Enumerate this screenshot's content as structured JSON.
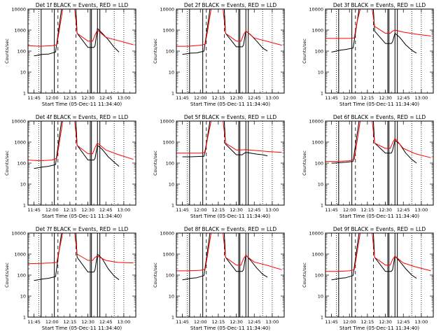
{
  "figure": {
    "start_time_label": "Start Time (05-Dec-11 11:34:40)",
    "ylabel": "Counts/sec",
    "tick_labels_y": [
      "10000",
      "1000",
      "100",
      "10",
      "1"
    ],
    "tick_labels_x": [
      "11:45",
      "12:00",
      "12:15",
      "12:30",
      "12:45",
      "13:00"
    ]
  },
  "colors": {
    "events": "#000000",
    "lld": "#ff0000"
  },
  "chart_data": [
    {
      "type": "line",
      "title": "Det 1f BLACK = Events, RED = LLD",
      "xlabel": "Start Time (05-Dec-11 11:34:40)",
      "ylabel": "Counts/sec",
      "x_axis": "time of day",
      "x_range": [
        "11:40",
        "13:10"
      ],
      "yscale": "log",
      "ylim": [
        1,
        10000
      ],
      "series": [
        {
          "name": "Events",
          "color": "#000000",
          "x": [
            "11:45",
            "11:47",
            "11:52",
            "11:57",
            "12:03",
            "12:05",
            "12:08",
            "12:09",
            "12:20",
            "12:21",
            "12:30",
            "12:35",
            "12:36",
            "12:38",
            "12:42",
            "12:47",
            "12:52",
            "12:56"
          ],
          "y": [
            60,
            62,
            70,
            72,
            90,
            600,
            10000,
            10000,
            10000,
            700,
            150,
            150,
            180,
            1200,
            700,
            350,
            150,
            90
          ]
        },
        {
          "name": "LLD",
          "color": "#ff0000",
          "x": [
            "11:40",
            "11:50",
            "12:00",
            "12:04",
            "12:06",
            "12:09",
            "12:19",
            "12:21",
            "12:30",
            "12:34",
            "12:36",
            "12:38",
            "12:45",
            "12:55",
            "13:08"
          ],
          "y": [
            180,
            170,
            180,
            200,
            900,
            10000,
            10000,
            700,
            300,
            300,
            600,
            1000,
            450,
            320,
            200
          ]
        }
      ]
    },
    {
      "type": "line",
      "title": "Det 2f BLACK = Events, RED = LLD",
      "xlabel": "Start Time (05-Dec-11 11:34:40)",
      "ylabel": "Counts/sec",
      "x_axis": "time of day",
      "x_range": [
        "11:40",
        "13:10"
      ],
      "yscale": "log",
      "ylim": [
        1,
        10000
      ],
      "series": [
        {
          "name": "Events",
          "color": "#000000",
          "x": [
            "11:45",
            "11:47",
            "11:52",
            "11:57",
            "12:03",
            "12:05",
            "12:08",
            "12:09",
            "12:20",
            "12:21",
            "12:30",
            "12:35",
            "12:36",
            "12:38",
            "12:42",
            "12:47",
            "12:52",
            "12:56"
          ],
          "y": [
            70,
            72,
            80,
            82,
            100,
            600,
            10000,
            10000,
            10000,
            700,
            160,
            160,
            190,
            900,
            600,
            300,
            140,
            100
          ]
        },
        {
          "name": "LLD",
          "color": "#ff0000",
          "x": [
            "11:40",
            "11:50",
            "12:00",
            "12:04",
            "12:06",
            "12:09",
            "12:19",
            "12:21",
            "12:30",
            "12:34",
            "12:36",
            "12:38",
            "12:45",
            "12:55",
            "13:08"
          ],
          "y": [
            170,
            170,
            190,
            210,
            900,
            10000,
            10000,
            700,
            300,
            300,
            600,
            900,
            420,
            300,
            190
          ]
        }
      ]
    },
    {
      "type": "line",
      "title": "Det 3f BLACK = Events, RED = LLD",
      "xlabel": "Start Time (05-Dec-11 11:34:40)",
      "ylabel": "Counts/sec",
      "x_axis": "time of day",
      "x_range": [
        "11:40",
        "13:10"
      ],
      "yscale": "log",
      "ylim": [
        1,
        10000
      ],
      "series": [
        {
          "name": "Events",
          "color": "#000000",
          "x": [
            "11:45",
            "11:47",
            "11:52",
            "11:57",
            "12:03",
            "12:05",
            "12:08",
            "12:09",
            "12:20",
            "12:21",
            "12:30",
            "12:35",
            "12:36",
            "12:38",
            "12:42",
            "12:47",
            "12:52",
            "12:56"
          ],
          "y": [
            90,
            95,
            110,
            120,
            140,
            700,
            10000,
            10000,
            10000,
            900,
            230,
            230,
            280,
            700,
            450,
            200,
            110,
            80
          ]
        },
        {
          "name": "LLD",
          "color": "#ff0000",
          "x": [
            "11:40",
            "11:50",
            "12:00",
            "12:04",
            "12:06",
            "12:09",
            "12:19",
            "12:21",
            "12:30",
            "12:34",
            "12:36",
            "12:38",
            "12:45",
            "12:55",
            "13:08"
          ],
          "y": [
            400,
            400,
            400,
            420,
            2000,
            10000,
            10000,
            1500,
            700,
            700,
            900,
            1000,
            800,
            650,
            520
          ]
        }
      ]
    },
    {
      "type": "line",
      "title": "Det 4f BLACK = Events, RED = LLD",
      "xlabel": "Start Time (05-Dec-11 11:34:40)",
      "ylabel": "Counts/sec",
      "x_axis": "time of day",
      "x_range": [
        "11:40",
        "13:10"
      ],
      "yscale": "log",
      "ylim": [
        1,
        10000
      ],
      "series": [
        {
          "name": "Events",
          "color": "#000000",
          "x": [
            "11:45",
            "11:47",
            "11:52",
            "11:57",
            "12:03",
            "12:05",
            "12:08",
            "12:09",
            "12:20",
            "12:21",
            "12:30",
            "12:35",
            "12:36",
            "12:38",
            "12:42",
            "12:47",
            "12:52",
            "12:56"
          ],
          "y": [
            55,
            58,
            65,
            70,
            85,
            600,
            10000,
            10000,
            10000,
            700,
            140,
            140,
            170,
            700,
            450,
            200,
            110,
            70
          ]
        },
        {
          "name": "LLD",
          "color": "#ff0000",
          "x": [
            "11:40",
            "11:50",
            "12:00",
            "12:04",
            "12:06",
            "12:09",
            "12:19",
            "12:21",
            "12:30",
            "12:34",
            "12:36",
            "12:38",
            "12:45",
            "12:55",
            "13:08"
          ],
          "y": [
            140,
            130,
            140,
            170,
            800,
            10000,
            10000,
            700,
            280,
            280,
            550,
            900,
            420,
            260,
            150
          ]
        }
      ]
    },
    {
      "type": "line",
      "title": "Det 5f BLACK = Events, RED = LLD",
      "xlabel": "Start Time (05-Dec-11 11:34:40)",
      "ylabel": "Counts/sec",
      "x_axis": "time of day",
      "x_range": [
        "11:40",
        "13:10"
      ],
      "yscale": "log",
      "ylim": [
        1,
        10000
      ],
      "series": [
        {
          "name": "Events",
          "color": "#000000",
          "x": [
            "11:45",
            "11:47",
            "11:52",
            "11:57",
            "12:03",
            "12:05",
            "12:08",
            "12:09",
            "12:20",
            "12:21",
            "12:30",
            "12:35",
            "12:36",
            "12:38",
            "12:42",
            "12:47",
            "12:52",
            "12:56"
          ],
          "y": [
            200,
            200,
            200,
            205,
            210,
            800,
            10000,
            10000,
            10000,
            800,
            250,
            250,
            280,
            320,
            300,
            270,
            250,
            220
          ]
        },
        {
          "name": "LLD",
          "color": "#ff0000",
          "x": [
            "11:40",
            "11:50",
            "12:00",
            "12:04",
            "12:06",
            "12:09",
            "12:19",
            "12:21",
            "12:30",
            "12:34",
            "12:36",
            "12:38",
            "12:45",
            "12:55",
            "13:08"
          ],
          "y": [
            300,
            300,
            300,
            320,
            1500,
            10000,
            10000,
            900,
            420,
            420,
            430,
            440,
            400,
            360,
            320
          ]
        }
      ]
    },
    {
      "type": "line",
      "title": "Det 6f BLACK = Events, RED = LLD",
      "xlabel": "Start Time (05-Dec-11 11:34:40)",
      "ylabel": "Counts/sec",
      "x_axis": "time of day",
      "x_range": [
        "11:40",
        "13:10"
      ],
      "yscale": "log",
      "ylim": [
        1,
        10000
      ],
      "series": [
        {
          "name": "Events",
          "color": "#000000",
          "x": [
            "11:45",
            "11:47",
            "11:52",
            "11:57",
            "12:03",
            "12:05",
            "12:08",
            "12:09",
            "12:20",
            "12:21",
            "12:30",
            "12:35",
            "12:36",
            "12:38",
            "12:42",
            "12:47",
            "12:52",
            "12:56"
          ],
          "y": [
            100,
            100,
            105,
            110,
            120,
            700,
            10000,
            10000,
            10000,
            900,
            300,
            300,
            400,
            1200,
            800,
            300,
            150,
            100
          ]
        },
        {
          "name": "LLD",
          "color": "#ff0000",
          "x": [
            "11:40",
            "11:50",
            "12:00",
            "12:04",
            "12:06",
            "12:09",
            "12:19",
            "12:21",
            "12:30",
            "12:34",
            "12:36",
            "12:38",
            "12:45",
            "12:55",
            "13:08"
          ],
          "y": [
            120,
            120,
            130,
            150,
            800,
            10000,
            10000,
            900,
            500,
            500,
            900,
            1500,
            500,
            280,
            180
          ]
        }
      ]
    },
    {
      "type": "line",
      "title": "Det 7f BLACK = Events, RED = LLD",
      "xlabel": "Start Time (05-Dec-11 11:34:40)",
      "ylabel": "Counts/sec",
      "x_axis": "time of day",
      "x_range": [
        "11:40",
        "13:10"
      ],
      "yscale": "log",
      "ylim": [
        1,
        10000
      ],
      "series": [
        {
          "name": "Events",
          "color": "#000000",
          "x": [
            "11:45",
            "11:47",
            "11:52",
            "11:57",
            "12:03",
            "12:05",
            "12:08",
            "12:09",
            "12:20",
            "12:21",
            "12:30",
            "12:35",
            "12:36",
            "12:38",
            "12:42",
            "12:47",
            "12:52",
            "12:56"
          ],
          "y": [
            55,
            58,
            65,
            70,
            85,
            600,
            10000,
            10000,
            10000,
            700,
            140,
            140,
            180,
            1000,
            600,
            200,
            90,
            60
          ]
        },
        {
          "name": "LLD",
          "color": "#ff0000",
          "x": [
            "11:40",
            "11:50",
            "12:00",
            "12:04",
            "12:06",
            "12:09",
            "12:19",
            "12:21",
            "12:30",
            "12:34",
            "12:36",
            "12:38",
            "12:45",
            "12:55",
            "13:08"
          ],
          "y": [
            350,
            360,
            380,
            400,
            1500,
            10000,
            10000,
            1000,
            500,
            500,
            700,
            800,
            500,
            400,
            380
          ]
        }
      ]
    },
    {
      "type": "line",
      "title": "Det 8f BLACK = Events, RED = LLD",
      "xlabel": "Start Time (05-Dec-11 11:34:40)",
      "ylabel": "Counts/sec",
      "x_axis": "time of day",
      "x_range": [
        "11:40",
        "13:10"
      ],
      "yscale": "log",
      "ylim": [
        1,
        10000
      ],
      "series": [
        {
          "name": "Events",
          "color": "#000000",
          "x": [
            "11:45",
            "11:47",
            "11:52",
            "11:57",
            "12:03",
            "12:05",
            "12:08",
            "12:09",
            "12:20",
            "12:21",
            "12:30",
            "12:35",
            "12:36",
            "12:38",
            "12:42",
            "12:47",
            "12:52",
            "12:56"
          ],
          "y": [
            60,
            62,
            70,
            75,
            95,
            600,
            10000,
            10000,
            10000,
            700,
            150,
            150,
            180,
            900,
            500,
            220,
            110,
            80
          ]
        },
        {
          "name": "LLD",
          "color": "#ff0000",
          "x": [
            "11:40",
            "11:50",
            "12:00",
            "12:04",
            "12:06",
            "12:09",
            "12:19",
            "12:21",
            "12:30",
            "12:34",
            "12:36",
            "12:38",
            "12:45",
            "12:55",
            "13:08"
          ],
          "y": [
            160,
            160,
            170,
            190,
            900,
            10000,
            10000,
            700,
            300,
            300,
            600,
            850,
            420,
            300,
            180
          ]
        }
      ]
    },
    {
      "type": "line",
      "title": "Det 9f BLACK = Events, RED = LLD",
      "xlabel": "Start Time (05-Dec-11 11:34:40)",
      "ylabel": "Counts/sec",
      "x_axis": "time of day",
      "x_range": [
        "11:40",
        "13:10"
      ],
      "yscale": "log",
      "ylim": [
        1,
        10000
      ],
      "series": [
        {
          "name": "Events",
          "color": "#000000",
          "x": [
            "11:45",
            "11:47",
            "11:52",
            "11:57",
            "12:03",
            "12:05",
            "12:08",
            "12:09",
            "12:20",
            "12:21",
            "12:30",
            "12:35",
            "12:36",
            "12:38",
            "12:42",
            "12:47",
            "12:52",
            "12:56"
          ],
          "y": [
            60,
            62,
            70,
            75,
            95,
            600,
            10000,
            10000,
            10000,
            700,
            150,
            150,
            180,
            800,
            450,
            200,
            100,
            70
          ]
        },
        {
          "name": "LLD",
          "color": "#ff0000",
          "x": [
            "11:40",
            "11:50",
            "12:00",
            "12:04",
            "12:06",
            "12:09",
            "12:19",
            "12:21",
            "12:30",
            "12:34",
            "12:36",
            "12:38",
            "12:45",
            "12:55",
            "13:08"
          ],
          "y": [
            150,
            150,
            160,
            180,
            900,
            10000,
            10000,
            700,
            300,
            300,
            550,
            800,
            380,
            250,
            160
          ]
        }
      ]
    }
  ]
}
